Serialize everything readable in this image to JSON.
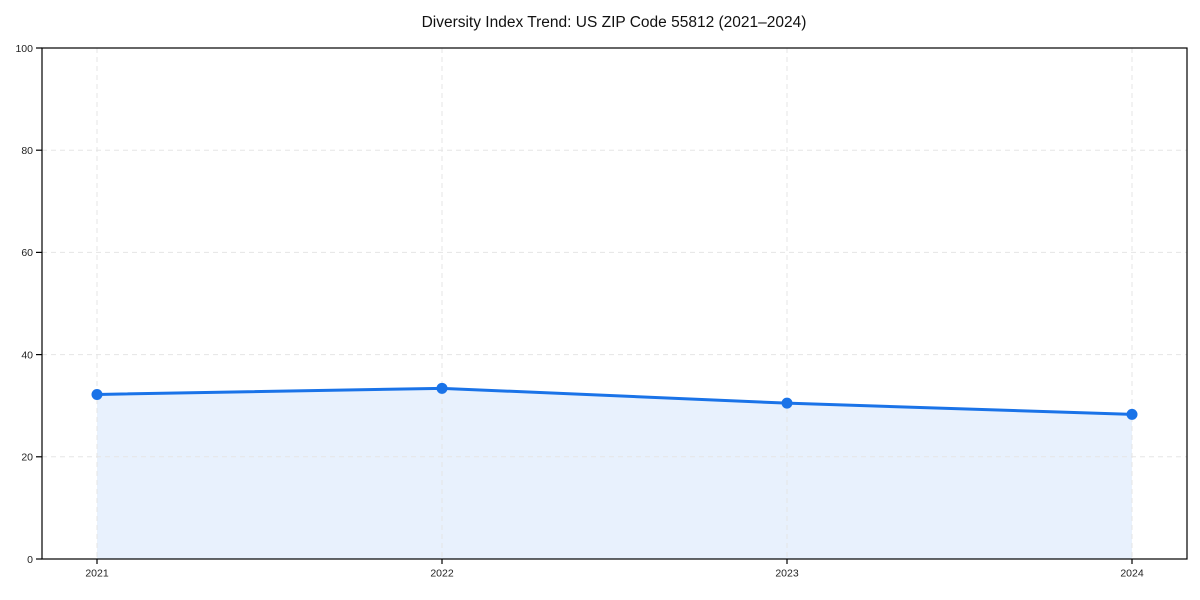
{
  "title": "Diversity Index Trend: US ZIP Code 55812 (2021–2024)",
  "colors": {
    "line": "#1a73e8",
    "marker": "#1a73e8",
    "area_fill": "rgba(26,115,232,0.10)",
    "grid": "#e5e5e5",
    "spine": "#000000",
    "title_text": "#111111",
    "tick_text": "#222222",
    "background": "#ffffff"
  },
  "chart_data": {
    "type": "line",
    "title": "Diversity Index Trend: US ZIP Code 55812 (2021–2024)",
    "categories": [
      "2021",
      "2022",
      "2023",
      "2024"
    ],
    "x": [
      2021,
      2022,
      2023,
      2024
    ],
    "series": [
      {
        "name": "Diversity Index",
        "values": [
          32.2,
          33.4,
          30.5,
          28.3
        ]
      }
    ],
    "xlabel": "",
    "ylabel": "",
    "ylim": [
      0,
      100
    ],
    "yticks": [
      0,
      20,
      40,
      60,
      80,
      100
    ],
    "grid": "dashed, horizontal and vertical",
    "legend": "none",
    "marker": "filled-circle",
    "area_fill_to_zero": true
  }
}
